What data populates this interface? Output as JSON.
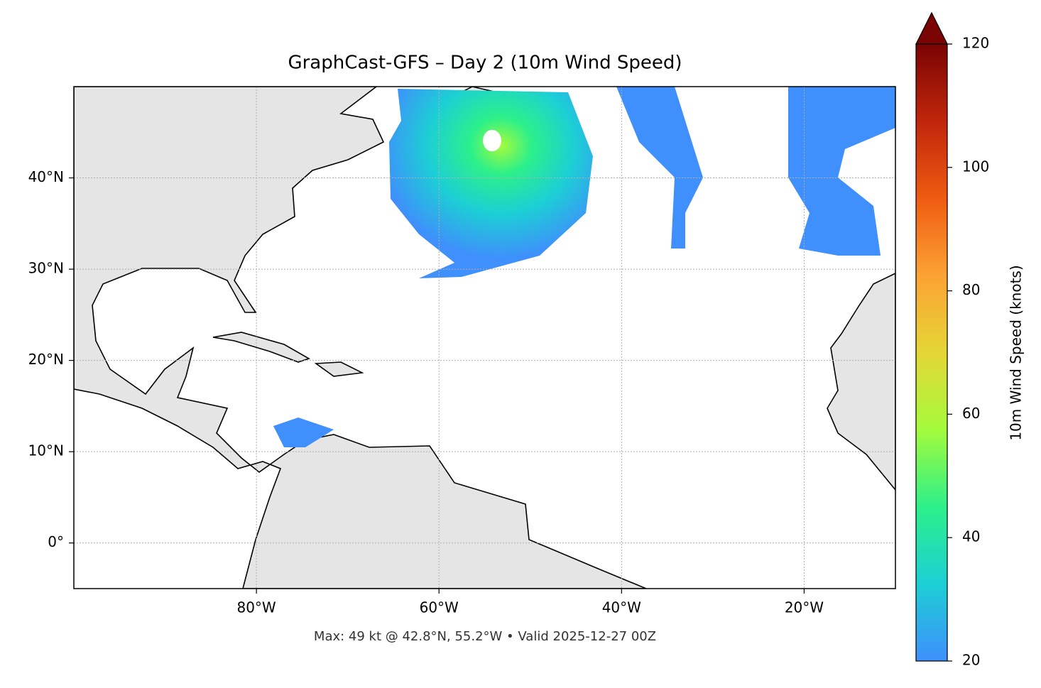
{
  "chart_data": {
    "type": "map",
    "title": "GraphCast-GFS – Day 2 (10m Wind Speed)",
    "footer": "Max: 49 kt @ 42.8°N, 55.2°W • Valid 2025-12-27 00Z",
    "xlim": [
      -100,
      -10
    ],
    "ylim": [
      -5,
      50
    ],
    "xticks": [
      {
        "value": -80,
        "label": "80°W"
      },
      {
        "value": -60,
        "label": "60°W"
      },
      {
        "value": -40,
        "label": "40°W"
      },
      {
        "value": -20,
        "label": "20°W"
      }
    ],
    "yticks": [
      {
        "value": 0,
        "label": "0°"
      },
      {
        "value": 10,
        "label": "10°N"
      },
      {
        "value": 20,
        "label": "20°N"
      },
      {
        "value": 30,
        "label": "30°N"
      },
      {
        "value": 40,
        "label": "40°N"
      }
    ],
    "grid": true,
    "colorbar": {
      "label": "10m Wind Speed (knots)",
      "lim": [
        20,
        120
      ],
      "ticks": [
        20,
        40,
        60,
        80,
        100,
        120
      ],
      "colors": [
        "#3f8ffc",
        "#1ccfd5",
        "#2cf08a",
        "#a4fb3c",
        "#e5d635",
        "#fca234",
        "#ef5b11",
        "#c0260b",
        "#7a0403"
      ]
    }
  }
}
